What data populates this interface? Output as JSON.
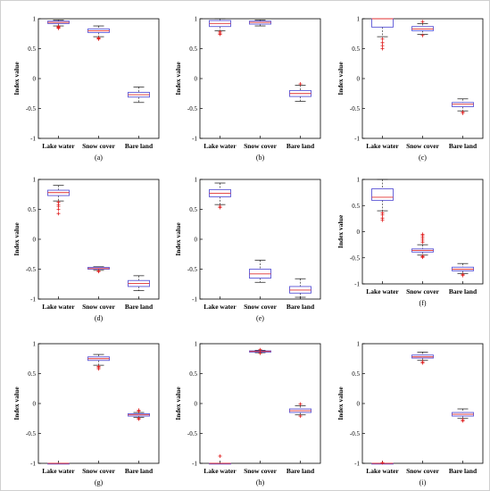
{
  "colors": {
    "box": "#5a55d6",
    "median": "#e03030",
    "outlier": "#e02020",
    "whisker": "#111111",
    "axis": "#000000"
  },
  "chart_data": [
    {
      "type": "box",
      "panel": "(a)",
      "ylabel": "Index value",
      "ylim": [
        -1,
        1
      ],
      "yticks": [
        "1",
        "0.5",
        "0",
        "-0.5",
        "-1"
      ],
      "categories": [
        "Lake water",
        "Snow cover",
        "Bare land"
      ],
      "boxes": [
        {
          "q1": 0.92,
          "median": 0.94,
          "q3": 0.96,
          "whisker_low": 0.88,
          "whisker_high": 0.98,
          "outliers": [
            0.86,
            0.85,
            0.87,
            0.84
          ]
        },
        {
          "q1": 0.77,
          "median": 0.8,
          "q3": 0.83,
          "whisker_low": 0.7,
          "whisker_high": 0.88,
          "outliers": [
            0.68,
            0.66,
            0.67
          ]
        },
        {
          "q1": -0.31,
          "median": -0.27,
          "q3": -0.23,
          "whisker_low": -0.4,
          "whisker_high": -0.14,
          "outliers": []
        }
      ]
    },
    {
      "type": "box",
      "panel": "(b)",
      "ylabel": "Index value",
      "ylim": [
        -1,
        1
      ],
      "yticks": [
        "1",
        "0.5",
        "0",
        "-0.5",
        "-1"
      ],
      "categories": [
        "Lake water",
        "Snow cover",
        "Bare land"
      ],
      "boxes": [
        {
          "q1": 0.87,
          "median": 0.92,
          "q3": 0.97,
          "whisker_low": 0.8,
          "whisker_high": 1.0,
          "outliers": [
            0.76,
            0.74,
            0.78
          ]
        },
        {
          "q1": 0.91,
          "median": 0.94,
          "q3": 0.96,
          "whisker_low": 0.88,
          "whisker_high": 0.98,
          "outliers": []
        },
        {
          "q1": -0.3,
          "median": -0.25,
          "q3": -0.2,
          "whisker_low": -0.38,
          "whisker_high": -0.11,
          "outliers": [
            -0.09
          ]
        }
      ]
    },
    {
      "type": "box",
      "panel": "(c)",
      "ylabel": "Index value",
      "ylim": [
        -1,
        1
      ],
      "yticks": [
        "1",
        "0.5",
        "0",
        "-0.5",
        "-1"
      ],
      "categories": [
        "Lake water",
        "Snow cover",
        "Bare land"
      ],
      "boxes": [
        {
          "q1": 0.86,
          "median": 1.0,
          "q3": 1.0,
          "whisker_low": 0.7,
          "whisker_high": 1.0,
          "outliers": [
            0.66,
            0.6,
            0.55,
            0.5
          ]
        },
        {
          "q1": 0.8,
          "median": 0.83,
          "q3": 0.87,
          "whisker_low": 0.74,
          "whisker_high": 0.92,
          "outliers": [
            0.72,
            0.95
          ]
        },
        {
          "q1": -0.47,
          "median": -0.43,
          "q3": -0.4,
          "whisker_low": -0.54,
          "whisker_high": -0.34,
          "outliers": [
            -0.56,
            -0.58
          ]
        }
      ]
    },
    {
      "type": "box",
      "panel": "(d)",
      "ylabel": "Index value",
      "ylim": [
        -1,
        1
      ],
      "yticks": [
        "1",
        "0.5",
        "0",
        "-0.5",
        "-1"
      ],
      "categories": [
        "Lake water",
        "Snow cover",
        "Bare land"
      ],
      "boxes": [
        {
          "q1": 0.73,
          "median": 0.78,
          "q3": 0.82,
          "whisker_low": 0.64,
          "whisker_high": 0.9,
          "outliers": [
            0.62,
            0.58,
            0.55,
            0.5,
            0.43
          ]
        },
        {
          "q1": -0.5,
          "median": -0.49,
          "q3": -0.47,
          "whisker_low": -0.52,
          "whisker_high": -0.46,
          "outliers": [
            -0.54,
            -0.53
          ]
        },
        {
          "q1": -0.79,
          "median": -0.74,
          "q3": -0.69,
          "whisker_low": -0.86,
          "whisker_high": -0.61,
          "outliers": []
        }
      ]
    },
    {
      "type": "box",
      "panel": "(e)",
      "ylabel": "Index value",
      "ylim": [
        -1,
        1
      ],
      "yticks": [
        "1",
        "0.5",
        "0",
        "-0.5",
        "-1"
      ],
      "categories": [
        "Lake water",
        "Snow cover",
        "Bare land"
      ],
      "boxes": [
        {
          "q1": 0.71,
          "median": 0.77,
          "q3": 0.83,
          "whisker_low": 0.58,
          "whisker_high": 0.94,
          "outliers": [
            0.55,
            0.53
          ]
        },
        {
          "q1": -0.65,
          "median": -0.58,
          "q3": -0.5,
          "whisker_low": -0.72,
          "whisker_high": -0.35,
          "outliers": []
        },
        {
          "q1": -0.9,
          "median": -0.85,
          "q3": -0.79,
          "whisker_low": -0.97,
          "whisker_high": -0.66,
          "outliers": []
        }
      ]
    },
    {
      "type": "box",
      "panel": "(f)",
      "ylabel": "Index value",
      "ylim": [
        -1,
        1
      ],
      "yticks": [
        "1",
        "0.5",
        "0",
        "-0.5",
        "-1"
      ],
      "categories": [
        "Lake water",
        "Snow cover",
        "Bare land"
      ],
      "boxes": [
        {
          "q1": 0.6,
          "median": 0.66,
          "q3": 0.82,
          "whisker_low": 0.4,
          "whisker_high": 1.0,
          "outliers": [
            0.36,
            0.32,
            0.26,
            0.22
          ]
        },
        {
          "q1": -0.39,
          "median": -0.36,
          "q3": -0.33,
          "whisker_low": -0.45,
          "whisker_high": -0.25,
          "outliers": [
            -0.47,
            -0.48,
            -0.49,
            -0.2,
            -0.16,
            -0.12,
            -0.08,
            -0.05
          ]
        },
        {
          "q1": -0.75,
          "median": -0.72,
          "q3": -0.68,
          "whisker_low": -0.8,
          "whisker_high": -0.61,
          "outliers": [
            -0.82,
            -0.84
          ]
        }
      ]
    },
    {
      "type": "box",
      "panel": "(g)",
      "ylabel": "Index value",
      "ylim": [
        -1,
        1
      ],
      "yticks": [
        "1",
        "0.5",
        "0",
        "-0.5",
        "-1"
      ],
      "categories": [
        "Lake water",
        "Snow cover",
        "Bare land"
      ],
      "boxes": [
        {
          "q1": -1.0,
          "median": -1.0,
          "q3": -1.0,
          "whisker_low": -1.0,
          "whisker_high": -1.0,
          "outliers": []
        },
        {
          "q1": 0.72,
          "median": 0.75,
          "q3": 0.78,
          "whisker_low": 0.64,
          "whisker_high": 0.82,
          "outliers": [
            0.62,
            0.6,
            0.58
          ]
        },
        {
          "q1": -0.21,
          "median": -0.19,
          "q3": -0.17,
          "whisker_low": -0.23,
          "whisker_high": -0.15,
          "outliers": [
            -0.25,
            -0.26,
            -0.13,
            -0.11
          ]
        }
      ]
    },
    {
      "type": "box",
      "panel": "(h)",
      "ylabel": "Index value",
      "ylim": [
        -1,
        1
      ],
      "yticks": [
        "1",
        "0.5",
        "0",
        "-0.5",
        "-1"
      ],
      "categories": [
        "Lake water",
        "Snow cover",
        "Bare land"
      ],
      "boxes": [
        {
          "q1": -1.0,
          "median": -1.0,
          "q3": -1.0,
          "whisker_low": -1.0,
          "whisker_high": -1.0,
          "outliers": [
            -0.88
          ]
        },
        {
          "q1": 0.86,
          "median": 0.87,
          "q3": 0.88,
          "whisker_low": 0.85,
          "whisker_high": 0.89,
          "outliers": [
            0.84,
            0.9
          ]
        },
        {
          "q1": -0.15,
          "median": -0.12,
          "q3": -0.09,
          "whisker_low": -0.19,
          "whisker_high": -0.04,
          "outliers": [
            -0.21,
            -0.01
          ]
        }
      ]
    },
    {
      "type": "box",
      "panel": "(i)",
      "ylabel": "Index value",
      "ylim": [
        -1,
        1
      ],
      "yticks": [
        "1",
        "0.5",
        "0",
        "-0.5",
        "-1"
      ],
      "categories": [
        "Lake water",
        "Snow cover",
        "Bare land"
      ],
      "boxes": [
        {
          "q1": -1.0,
          "median": -1.0,
          "q3": -1.0,
          "whisker_low": -1.0,
          "whisker_high": -1.0,
          "outliers": [
            -0.99
          ]
        },
        {
          "q1": 0.76,
          "median": 0.78,
          "q3": 0.81,
          "whisker_low": 0.72,
          "whisker_high": 0.86,
          "outliers": [
            0.7,
            0.68
          ]
        },
        {
          "q1": -0.21,
          "median": -0.18,
          "q3": -0.15,
          "whisker_low": -0.25,
          "whisker_high": -0.09,
          "outliers": [
            -0.27,
            -0.29
          ]
        }
      ]
    }
  ]
}
